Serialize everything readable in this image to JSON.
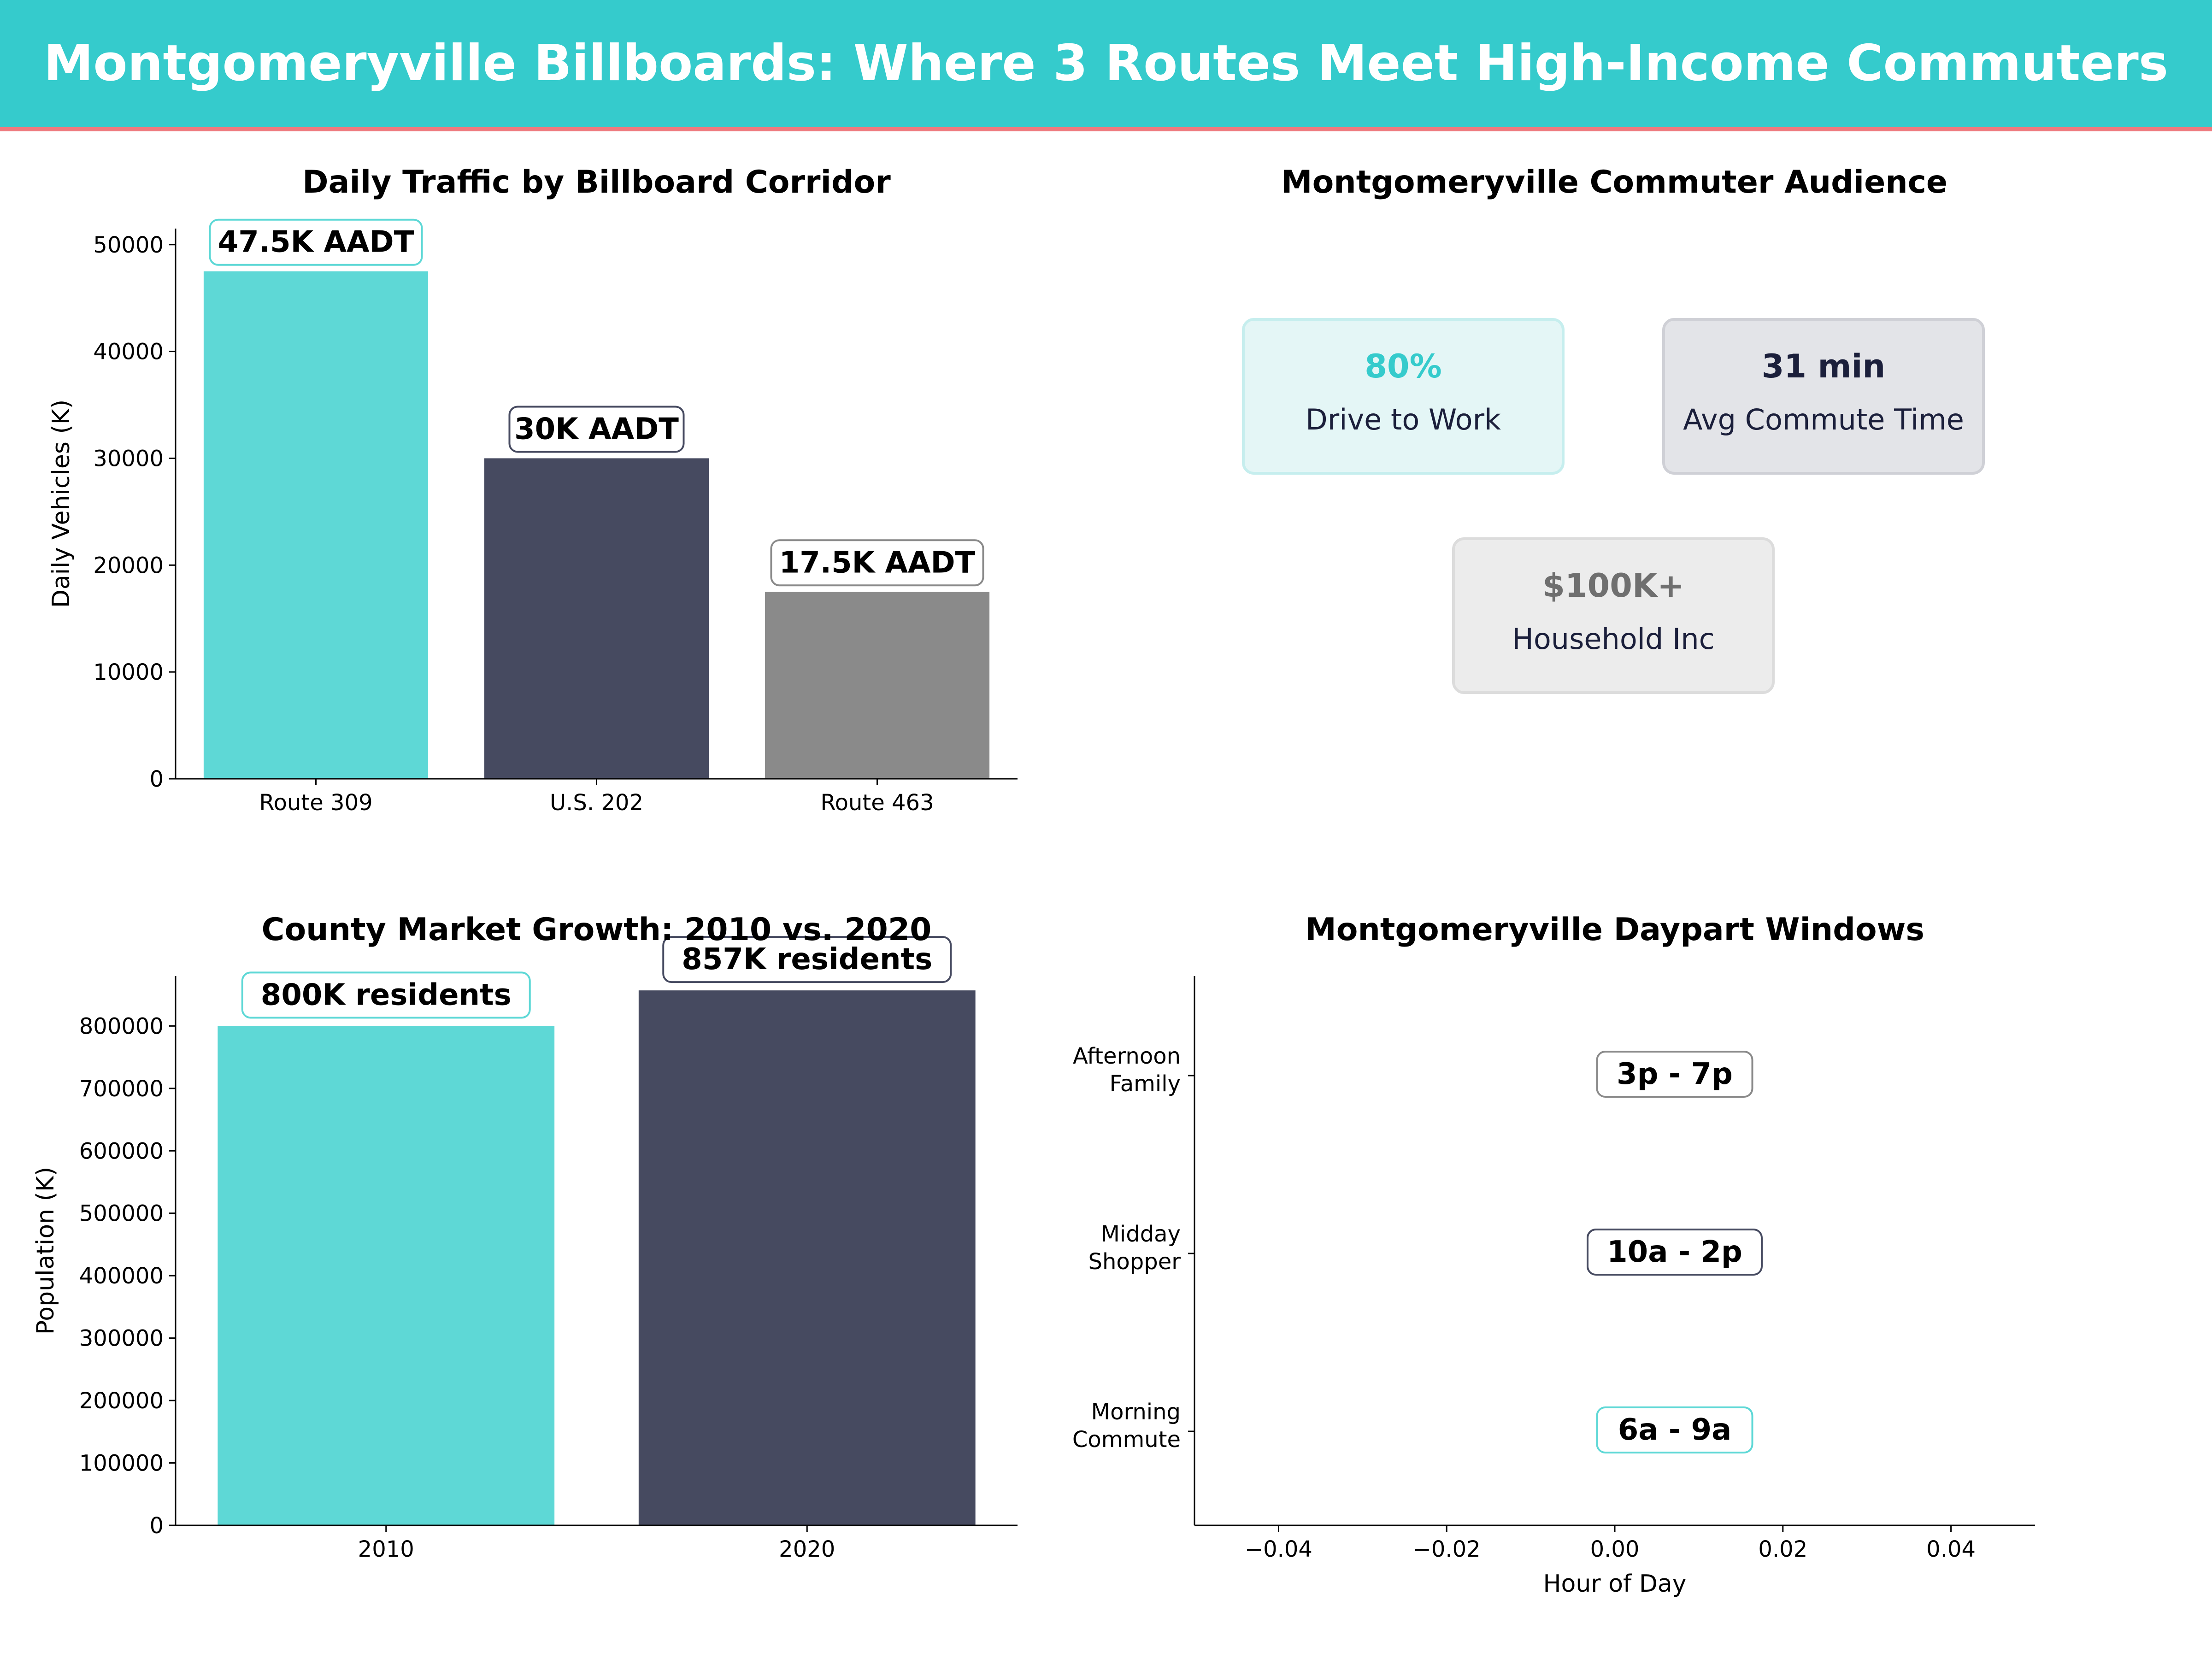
{
  "banner": {
    "title": "Montgomeryville Billboards: Where 3 Routes Meet High-Income Commuters"
  },
  "colors": {
    "teal": "#5ed8d6",
    "navy": "#464a60",
    "gray": "#8a8a8a",
    "banner": "#35cbcc",
    "accent_line": "#ee7a7e"
  },
  "audience": {
    "title": "Montgomeryville Commuter Audience",
    "cards": [
      {
        "value": "80%",
        "label": "Drive to Work",
        "value_color": "#35cbcc",
        "fill": "#e4f6f6",
        "border": "#c6eeee"
      },
      {
        "value": "31 min",
        "label": "Avg Commute Time",
        "value_color": "#1b1f3b",
        "fill": "#e3e4e8",
        "border": "#cfd0d6"
      },
      {
        "value": "$100K+",
        "label": "Household Inc",
        "value_color": "#6f6f6f",
        "fill": "#ececec",
        "border": "#dcdcdc"
      }
    ]
  },
  "chart_data": [
    {
      "type": "bar",
      "title": "Daily Traffic by Billboard Corridor",
      "xlabel": "",
      "ylabel": "Daily Vehicles (K)",
      "categories": [
        "Route 309",
        "U.S. 202",
        "Route 463"
      ],
      "values": [
        47500,
        30000,
        17500
      ],
      "data_labels": [
        "47.5K AADT",
        "30K AADT",
        "17.5K AADT"
      ],
      "colors": [
        "#5ed8d6",
        "#464a60",
        "#8a8a8a"
      ],
      "ylim": [
        0,
        51500
      ],
      "yticks": [
        0,
        10000,
        20000,
        30000,
        40000,
        50000
      ],
      "grid": false
    },
    {
      "type": "bar",
      "title": "County Market Growth: 2010 vs. 2020",
      "xlabel": "",
      "ylabel": "Population (K)",
      "categories": [
        "2010",
        "2020"
      ],
      "values": [
        800000,
        857000
      ],
      "data_labels": [
        "800K residents",
        "857K residents"
      ],
      "colors": [
        "#5ed8d6",
        "#464a60"
      ],
      "ylim": [
        0,
        880000
      ],
      "yticks": [
        0,
        100000,
        200000,
        300000,
        400000,
        500000,
        600000,
        700000,
        800000
      ],
      "grid": false
    },
    {
      "type": "scatter",
      "title": "Montgomeryville Daypart Windows",
      "xlabel": "Hour of Day",
      "ylabel": "",
      "categories": [
        "Morning\nCommute",
        "Midday\nShopper",
        "Afternoon\nFamily"
      ],
      "window_labels": [
        "6a - 9a",
        "10a - 2p",
        "3p - 7p"
      ],
      "label_borders": [
        "#5ed8d6",
        "#464a60",
        "#8a8a8a"
      ],
      "x": [
        0,
        0,
        0
      ],
      "xlim": [
        -0.05,
        0.05
      ],
      "xticks": [
        -0.04,
        -0.02,
        0.0,
        0.02,
        0.04
      ],
      "xtick_labels": [
        "−0.04",
        "−0.02",
        "0.00",
        "0.02",
        "0.04"
      ],
      "grid": false
    }
  ]
}
